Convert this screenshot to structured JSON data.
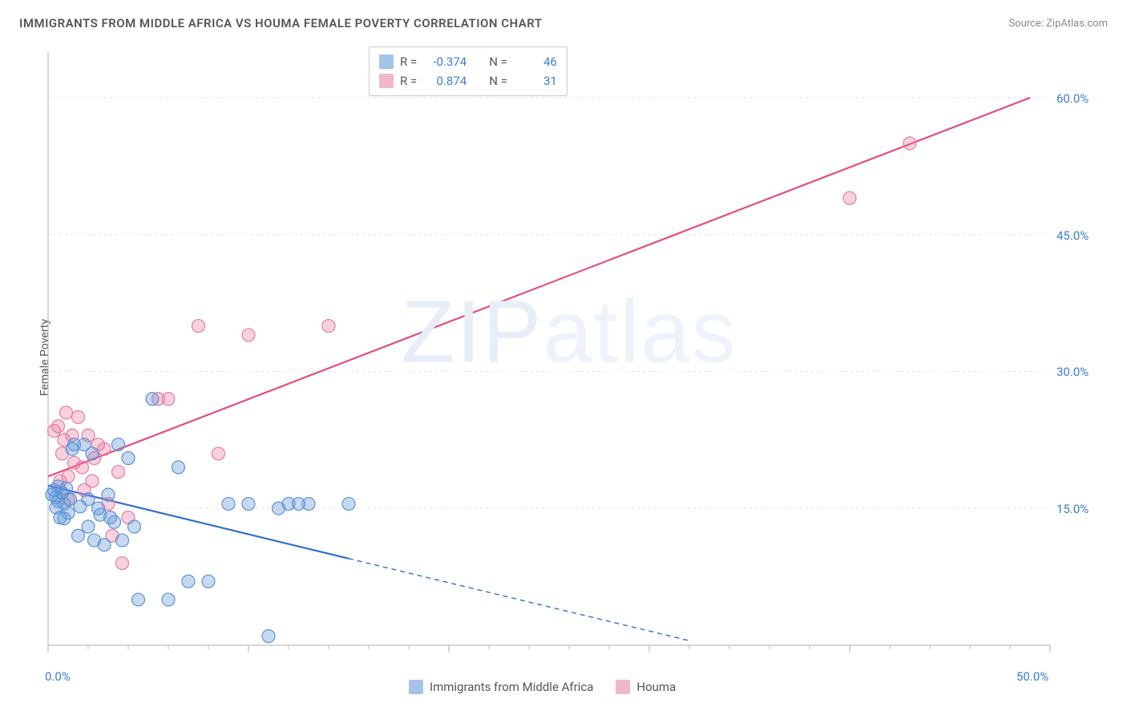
{
  "title": "IMMIGRANTS FROM MIDDLE AFRICA VS HOUMA FEMALE POVERTY CORRELATION CHART",
  "source_label": "Source:",
  "source_name": "ZipAtlas.com",
  "ylabel": "Female Poverty",
  "watermark_a": "ZIP",
  "watermark_b": "atlas",
  "chart": {
    "type": "scatter-with-regression",
    "background_color": "#ffffff",
    "grid_color": "#e2e2e2",
    "axis_color": "#bfbfbf",
    "tick_label_color": "#3b7dd8",
    "xlim": [
      0,
      50
    ],
    "ylim": [
      0,
      65
    ],
    "x_ticks_major": [
      0,
      10,
      20,
      30,
      40,
      50
    ],
    "x_ticks_minor_step": 2,
    "x_tick_labels": [
      {
        "v": 0,
        "t": "0.0%"
      },
      {
        "v": 50,
        "t": "50.0%"
      }
    ],
    "y_ticks_major": [
      0,
      15,
      30,
      45,
      60
    ],
    "y_tick_labels": [
      {
        "v": 15,
        "t": "15.0%"
      },
      {
        "v": 30,
        "t": "30.0%"
      },
      {
        "v": 45,
        "t": "45.0%"
      },
      {
        "v": 60,
        "t": "60.0%"
      }
    ],
    "label_fontsize": 15,
    "marker_radius": 8,
    "marker_fill_opacity": 0.35,
    "marker_stroke_width": 1.2,
    "line_width_solid": 2.2,
    "line_width_dash": 1.4,
    "dash_pattern": "6 5"
  },
  "series": {
    "blue": {
      "label": "Immigrants from Middle Africa",
      "color": "#5b93d8",
      "line_color": "#2f6fd0",
      "R": "-0.374",
      "N": "46",
      "regression": {
        "x1": 0,
        "y1": 17.5,
        "x2": 15,
        "y2": 9.5,
        "extend_x": 32,
        "extend_y": 0.5
      },
      "points": [
        [
          0.2,
          16.5
        ],
        [
          0.3,
          17.0
        ],
        [
          0.4,
          16.2
        ],
        [
          0.4,
          15.1
        ],
        [
          0.5,
          17.4
        ],
        [
          0.5,
          15.8
        ],
        [
          0.6,
          14.0
        ],
        [
          0.7,
          16.7
        ],
        [
          0.8,
          15.5
        ],
        [
          0.8,
          13.9
        ],
        [
          0.9,
          17.2
        ],
        [
          1.0,
          14.5
        ],
        [
          1.1,
          16.0
        ],
        [
          1.2,
          21.5
        ],
        [
          1.3,
          22.0
        ],
        [
          1.5,
          12.0
        ],
        [
          1.6,
          15.2
        ],
        [
          1.8,
          22.0
        ],
        [
          2.0,
          13.0
        ],
        [
          2.0,
          16.0
        ],
        [
          2.2,
          21.0
        ],
        [
          2.3,
          11.5
        ],
        [
          2.5,
          15.0
        ],
        [
          2.6,
          14.3
        ],
        [
          2.8,
          11.0
        ],
        [
          3.0,
          16.5
        ],
        [
          3.1,
          14.0
        ],
        [
          3.3,
          13.5
        ],
        [
          3.5,
          22.0
        ],
        [
          3.7,
          11.5
        ],
        [
          4.0,
          20.5
        ],
        [
          4.3,
          13.0
        ],
        [
          4.5,
          5.0
        ],
        [
          5.2,
          27.0
        ],
        [
          6.0,
          5.0
        ],
        [
          6.5,
          19.5
        ],
        [
          7.0,
          7.0
        ],
        [
          8.0,
          7.0
        ],
        [
          9.0,
          15.5
        ],
        [
          10.0,
          15.5
        ],
        [
          11.0,
          1.0
        ],
        [
          11.5,
          15.0
        ],
        [
          12.0,
          15.5
        ],
        [
          12.5,
          15.5
        ],
        [
          13.0,
          15.5
        ],
        [
          15.0,
          15.5
        ]
      ]
    },
    "pink": {
      "label": "Houma",
      "color": "#e87ba0",
      "line_color": "#e24d85",
      "R": "0.874",
      "N": "31",
      "regression": {
        "x1": 0,
        "y1": 18.5,
        "x2": 49,
        "y2": 60.0
      },
      "points": [
        [
          0.3,
          23.5
        ],
        [
          0.5,
          24.0
        ],
        [
          0.6,
          18.0
        ],
        [
          0.7,
          21.0
        ],
        [
          0.8,
          22.5
        ],
        [
          0.9,
          25.5
        ],
        [
          1.0,
          18.5
        ],
        [
          1.0,
          16.0
        ],
        [
          1.2,
          23.0
        ],
        [
          1.3,
          20.0
        ],
        [
          1.5,
          25.0
        ],
        [
          1.7,
          19.5
        ],
        [
          1.8,
          17.0
        ],
        [
          2.0,
          23.0
        ],
        [
          2.2,
          18.0
        ],
        [
          2.3,
          20.5
        ],
        [
          2.5,
          22.0
        ],
        [
          2.8,
          21.5
        ],
        [
          3.0,
          15.5
        ],
        [
          3.2,
          12.0
        ],
        [
          3.5,
          19.0
        ],
        [
          3.7,
          9.0
        ],
        [
          4.0,
          14.0
        ],
        [
          5.5,
          27.0
        ],
        [
          6.0,
          27.0
        ],
        [
          7.5,
          35.0
        ],
        [
          8.5,
          21.0
        ],
        [
          10.0,
          34.0
        ],
        [
          14.0,
          35.0
        ],
        [
          40.0,
          49.0
        ],
        [
          43.0,
          55.0
        ]
      ]
    }
  },
  "legend_top": {
    "r_label": "R =",
    "n_label": "N ="
  }
}
